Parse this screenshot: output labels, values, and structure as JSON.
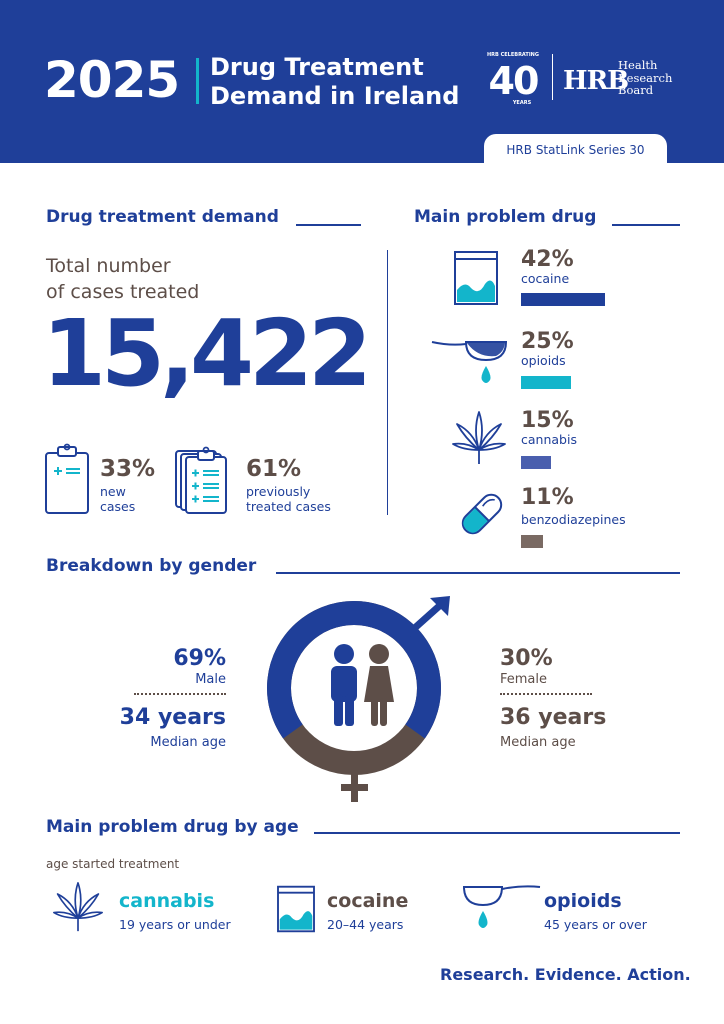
{
  "header": {
    "year": "2025",
    "title_line1": "Drug Treatment",
    "title_line2": "Demand in Ireland",
    "logo40": {
      "top": "HRB CELEBRATING",
      "number": "40",
      "bottom": "YEARS"
    },
    "hrb_logo": "HRB",
    "hrb_name": [
      "Health",
      "Research",
      "Board"
    ],
    "series": "HRB StatLink Series 30"
  },
  "demand": {
    "heading": "Drug treatment demand",
    "total_label_line1": "Total number",
    "total_label_line2": "of cases treated",
    "total_value": "15,422",
    "new": {
      "pct": "33%",
      "line1": "new",
      "line2": "cases"
    },
    "previous": {
      "pct": "61%",
      "line1": "previously",
      "line2": "treated cases"
    }
  },
  "main_drug": {
    "heading": "Main problem drug",
    "items": [
      {
        "pct": "42%",
        "name": "cocaine",
        "value": 42,
        "color": "#1f3f99",
        "icon": "cocaine-bag-icon"
      },
      {
        "pct": "25%",
        "name": "opioids",
        "value": 25,
        "color": "#13b5cb",
        "icon": "spoon-drop-icon"
      },
      {
        "pct": "15%",
        "name": "cannabis",
        "value": 15,
        "color": "#4a5fae",
        "icon": "cannabis-leaf-icon"
      },
      {
        "pct": "11%",
        "name": "benzodiazepines",
        "value": 11,
        "color": "#7a6a63",
        "icon": "pill-capsule-icon"
      }
    ]
  },
  "gender": {
    "heading": "Breakdown by gender",
    "male": {
      "pct": "69%",
      "label": "Male",
      "age": "34 years",
      "age_label": "Median age",
      "value": 69,
      "color": "#1f3f99"
    },
    "female": {
      "pct": "30%",
      "label": "Female",
      "age": "36 years",
      "age_label": "Median age",
      "value": 30,
      "color": "#5d4e48"
    }
  },
  "by_age": {
    "heading": "Main problem drug by age",
    "subheading": "age started treatment",
    "items": [
      {
        "drug": "cannabis",
        "range": "19 years or under",
        "color": "#13b5cb"
      },
      {
        "drug": "cocaine",
        "range": "20–44 years",
        "color": "#5d4e48"
      },
      {
        "drug": "opioids",
        "range": "45 years or over",
        "color": "#1f3f99"
      }
    ]
  },
  "tagline": "Research. Evidence. Action."
}
